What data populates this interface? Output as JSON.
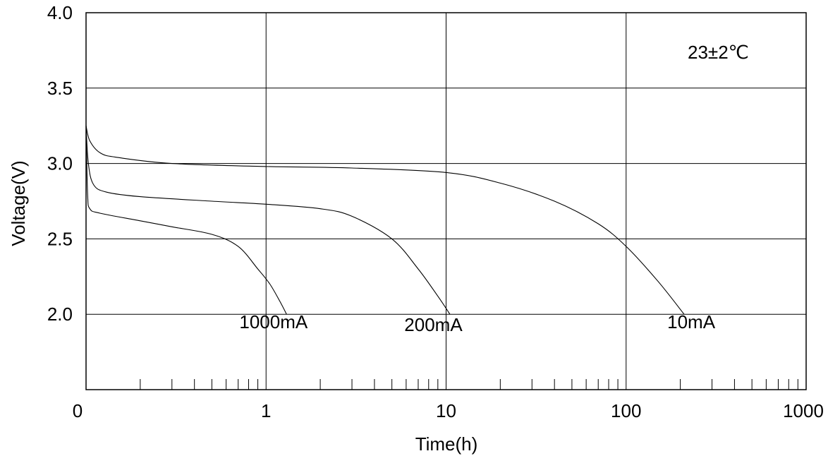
{
  "chart_data": {
    "type": "line",
    "xlabel": "Time(h)",
    "ylabel": "Voltage(V)",
    "x_scale": "log",
    "xlim": [
      0.1,
      1000
    ],
    "ylim": [
      1.5,
      4.0
    ],
    "grid": true,
    "x_ticks": [
      {
        "value": 0.1,
        "label": "0"
      },
      {
        "value": 1,
        "label": "1"
      },
      {
        "value": 10,
        "label": "10"
      },
      {
        "value": 100,
        "label": "100"
      },
      {
        "value": 1000,
        "label": "1000"
      }
    ],
    "y_ticks": [
      {
        "value": 2.0,
        "label": "2.0"
      },
      {
        "value": 2.5,
        "label": "2.5"
      },
      {
        "value": 3.0,
        "label": "3.0"
      },
      {
        "value": 3.5,
        "label": "3.5"
      },
      {
        "value": 4.0,
        "label": "4.0"
      }
    ],
    "annotation": "23±2℃",
    "series": [
      {
        "name": "1000mA",
        "points": [
          [
            0.1,
            3.25
          ],
          [
            0.102,
            2.8
          ],
          [
            0.105,
            2.7
          ],
          [
            0.12,
            2.67
          ],
          [
            0.2,
            2.62
          ],
          [
            0.3,
            2.58
          ],
          [
            0.5,
            2.53
          ],
          [
            0.7,
            2.45
          ],
          [
            0.9,
            2.3
          ],
          [
            1.05,
            2.2
          ],
          [
            1.2,
            2.08
          ],
          [
            1.3,
            2.0
          ]
        ]
      },
      {
        "name": "200mA",
        "points": [
          [
            0.1,
            3.25
          ],
          [
            0.103,
            3.0
          ],
          [
            0.11,
            2.86
          ],
          [
            0.13,
            2.81
          ],
          [
            0.2,
            2.78
          ],
          [
            0.5,
            2.75
          ],
          [
            1,
            2.73
          ],
          [
            2,
            2.7
          ],
          [
            3,
            2.65
          ],
          [
            5,
            2.5
          ],
          [
            7,
            2.3
          ],
          [
            9,
            2.12
          ],
          [
            10.5,
            2.0
          ]
        ]
      },
      {
        "name": "10mA",
        "points": [
          [
            0.1,
            3.25
          ],
          [
            0.105,
            3.15
          ],
          [
            0.12,
            3.07
          ],
          [
            0.15,
            3.04
          ],
          [
            0.3,
            3.0
          ],
          [
            1,
            2.98
          ],
          [
            3,
            2.97
          ],
          [
            10,
            2.94
          ],
          [
            20,
            2.87
          ],
          [
            40,
            2.75
          ],
          [
            70,
            2.6
          ],
          [
            100,
            2.45
          ],
          [
            150,
            2.22
          ],
          [
            210,
            2.0
          ]
        ]
      }
    ],
    "series_labels": [
      {
        "text": "1000mA",
        "x": 1.1,
        "y": 1.95
      },
      {
        "text": "200mA",
        "x": 8.5,
        "y": 1.93
      },
      {
        "text": "10mA",
        "x": 230,
        "y": 1.95
      }
    ]
  }
}
